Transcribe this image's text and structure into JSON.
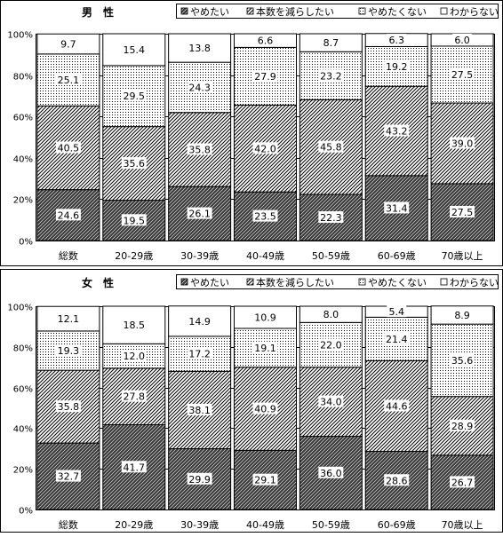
{
  "colors": {
    "frame": "#000000",
    "background": "#ffffff",
    "grid": "#000000",
    "bar_stroke": "#000000",
    "label_box": "#ffffff"
  },
  "legend_items": [
    {
      "label": "やめたい",
      "pattern": "crosshatch"
    },
    {
      "label": "本数を減らしたい",
      "pattern": "diagonal"
    },
    {
      "label": "やめたくない",
      "pattern": "dots"
    },
    {
      "label": "わからない",
      "pattern": "blank"
    }
  ],
  "chart_data": [
    {
      "type": "bar",
      "stacked": true,
      "title": "男　性",
      "categories": [
        "総数",
        "20-29歳",
        "30-39歳",
        "40-49歳",
        "50-59歳",
        "60-69歳",
        "70歳以上"
      ],
      "yticks": [
        "0%",
        "20%",
        "40%",
        "60%",
        "80%",
        "100%"
      ],
      "ylim": [
        0,
        100
      ],
      "grid": true,
      "legend_position": "top-right",
      "series": [
        {
          "name": "やめたい",
          "values": [
            24.6,
            19.5,
            26.1,
            23.5,
            22.3,
            31.4,
            27.5
          ]
        },
        {
          "name": "本数を減らしたい",
          "values": [
            40.5,
            35.6,
            35.8,
            42.0,
            45.8,
            43.2,
            39.0
          ]
        },
        {
          "name": "やめたくない",
          "values": [
            25.1,
            29.5,
            24.3,
            27.9,
            23.2,
            19.2,
            27.5
          ]
        },
        {
          "name": "わからない",
          "values": [
            9.7,
            15.4,
            13.8,
            6.6,
            8.7,
            6.3,
            6.0
          ]
        }
      ]
    },
    {
      "type": "bar",
      "stacked": true,
      "title": "女　性",
      "categories": [
        "総数",
        "20-29歳",
        "30-39歳",
        "40-49歳",
        "50-59歳",
        "60-69歳",
        "70歳以上"
      ],
      "yticks": [
        "0%",
        "20%",
        "40%",
        "60%",
        "80%",
        "100%"
      ],
      "ylim": [
        0,
        100
      ],
      "grid": true,
      "legend_position": "top-right",
      "series": [
        {
          "name": "やめたい",
          "values": [
            32.7,
            41.7,
            29.9,
            29.1,
            36.0,
            28.6,
            26.7
          ]
        },
        {
          "name": "本数を減らしたい",
          "values": [
            35.8,
            27.8,
            38.1,
            40.9,
            34.0,
            44.6,
            28.9
          ]
        },
        {
          "name": "やめたくない",
          "values": [
            19.3,
            12.0,
            17.2,
            19.1,
            22.0,
            21.4,
            35.6
          ]
        },
        {
          "name": "わからない",
          "values": [
            12.1,
            18.5,
            14.9,
            10.9,
            8.0,
            5.4,
            8.9
          ]
        }
      ]
    }
  ]
}
